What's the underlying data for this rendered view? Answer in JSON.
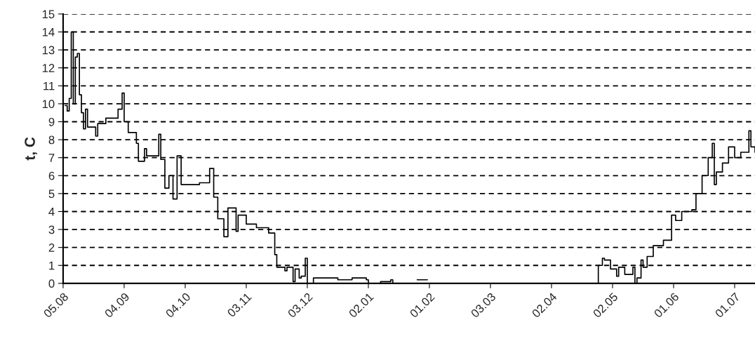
{
  "chart_data": {
    "type": "step",
    "ylabel": "t, C",
    "color": "#000000",
    "grid": "y",
    "line_style": "solid",
    "xlim": [
      "2001-08-05",
      "2002-07-11"
    ],
    "ylim": [
      0,
      15
    ],
    "yticks": [
      0,
      1,
      2,
      3,
      4,
      5,
      6,
      7,
      8,
      9,
      10,
      11,
      12,
      13,
      14,
      15
    ],
    "xticks": [
      {
        "value": "2001-08-05",
        "label": "05.08"
      },
      {
        "value": "2001-09-04",
        "label": "04.09"
      },
      {
        "value": "2001-10-04",
        "label": "04.10"
      },
      {
        "value": "2001-11-03",
        "label": "03.11"
      },
      {
        "value": "2001-12-03",
        "label": "03.12"
      },
      {
        "value": "2002-01-02",
        "label": "02.01"
      },
      {
        "value": "2002-02-01",
        "label": "01.02"
      },
      {
        "value": "2002-03-03",
        "label": "03.03"
      },
      {
        "value": "2002-04-02",
        "label": "02.04"
      },
      {
        "value": "2002-05-02",
        "label": "02.05"
      },
      {
        "value": "2002-06-01",
        "label": "01.06"
      },
      {
        "value": "2002-07-01",
        "label": "01.07"
      }
    ],
    "x": [
      "2001-08-06",
      "2001-08-07",
      "2001-08-08",
      "2001-08-09",
      "2001-08-10",
      "2001-08-11",
      "2001-08-12",
      "2001-08-13",
      "2001-08-14",
      "2001-08-15",
      "2001-08-16",
      "2001-08-17",
      "2001-08-21",
      "2001-08-22",
      "2001-08-26",
      "2001-08-29",
      "2001-09-01",
      "2001-09-03",
      "2001-09-04",
      "2001-09-06",
      "2001-09-10",
      "2001-09-11",
      "2001-09-14",
      "2001-09-15",
      "2001-09-21",
      "2001-09-22",
      "2001-09-24",
      "2001-09-26",
      "2001-09-28",
      "2001-09-30",
      "2001-10-02",
      "2001-10-06",
      "2001-10-11",
      "2001-10-16",
      "2001-10-18",
      "2001-10-20",
      "2001-10-23",
      "2001-10-25",
      "2001-10-29",
      "2001-10-30",
      "2001-11-03",
      "2001-11-08",
      "2001-11-14",
      "2001-11-17",
      "2001-11-18",
      "2001-11-22",
      "2001-11-23",
      "2001-11-26",
      "2001-11-27",
      "2001-11-29",
      "2001-11-30",
      "2001-12-02",
      "2001-12-03",
      "2001-12-06",
      "2001-12-18",
      "2001-12-25",
      "2002-01-01",
      "2002-01-02",
      "2002-01-08",
      "2002-01-13",
      "2002-01-14",
      "2002-01-22",
      "2002-01-26",
      "2002-01-31",
      "2002-04-14",
      "2002-04-17",
      "2002-04-22",
      "2002-04-24",
      "2002-04-25",
      "2002-04-27",
      "2002-04-28",
      "2002-05-01",
      "2002-05-04",
      "2002-05-05",
      "2002-05-08",
      "2002-05-12",
      "2002-05-13",
      "2002-05-14",
      "2002-05-16",
      "2002-05-17",
      "2002-05-19",
      "2002-05-22",
      "2002-05-27",
      "2002-05-31",
      "2002-06-02",
      "2002-06-05",
      "2002-06-10",
      "2002-06-12",
      "2002-06-15",
      "2002-06-18",
      "2002-06-20",
      "2002-06-21",
      "2002-06-22",
      "2002-06-25",
      "2002-06-28",
      "2002-07-01",
      "2002-07-04",
      "2002-07-08",
      "2002-07-09",
      "2002-07-11"
    ],
    "values": [
      9.9,
      9.6,
      10.3,
      14.0,
      10.0,
      12.6,
      12.8,
      10.5,
      9.5,
      8.6,
      9.7,
      8.7,
      8.2,
      8.9,
      9.2,
      9.2,
      9.7,
      10.6,
      9.0,
      8.4,
      7.8,
      6.8,
      7.5,
      7.1,
      8.3,
      6.9,
      5.3,
      6.0,
      4.7,
      7.1,
      5.5,
      5.5,
      5.6,
      6.4,
      4.8,
      3.6,
      2.6,
      4.2,
      2.9,
      3.8,
      3.3,
      3.1,
      2.8,
      1.6,
      0.9,
      0.7,
      0.9,
      0.1,
      0.8,
      0.3,
      0.4,
      1.4,
      0.0,
      0.3,
      0.2,
      0.3,
      0.2,
      0.0,
      0.1,
      0.2,
      0.0,
      null,
      0.2,
      null,
      0.0,
      0.0,
      null,
      0.0,
      1.0,
      1.4,
      1.3,
      0.8,
      0.4,
      0.9,
      0.5,
      0.9,
      0.0,
      0.3,
      1.3,
      0.9,
      1.5,
      2.1,
      2.4,
      3.8,
      3.5,
      4.0,
      4.1,
      5.0,
      6.0,
      7.0,
      7.8,
      5.5,
      6.2,
      6.7,
      7.6,
      7.0,
      7.3,
      8.5,
      7.6,
      7.3
    ]
  }
}
